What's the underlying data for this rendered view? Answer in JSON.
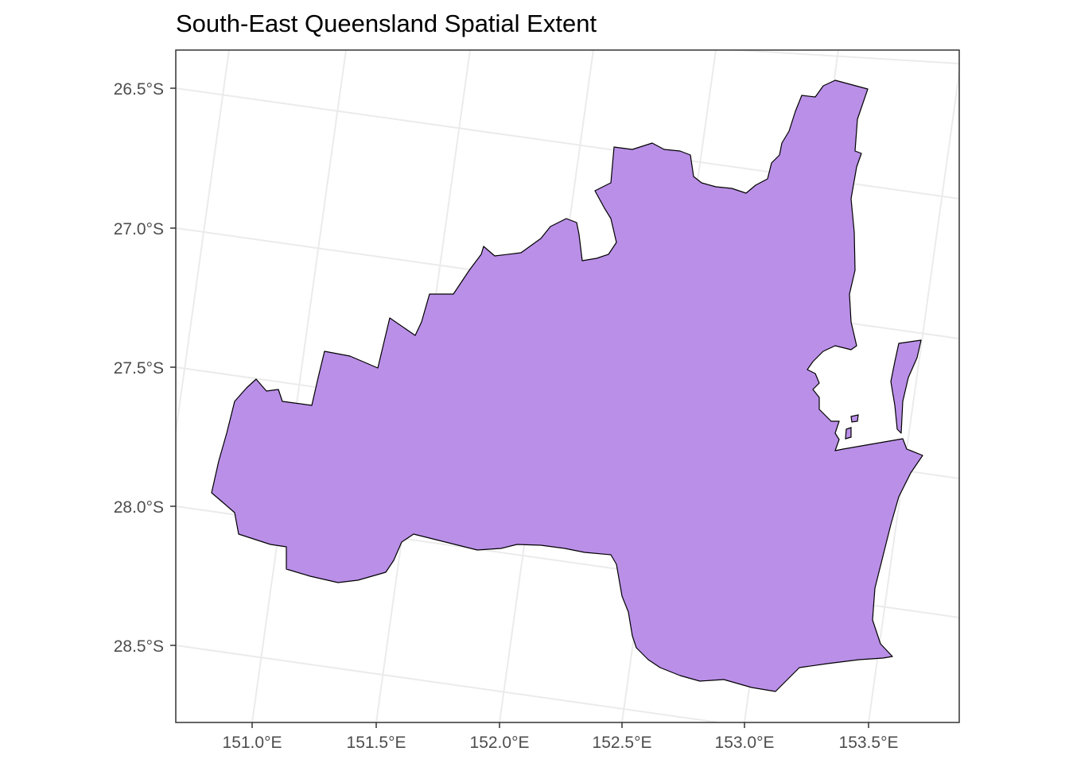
{
  "map": {
    "title": "South-East Queensland Spatial Extent",
    "region_fill": "#B98FE7",
    "region_outline": "#000000",
    "x_axis": {
      "ticks": [
        "151.0°E",
        "151.5°E",
        "152.0°E",
        "152.5°E",
        "153.0°E",
        "153.5°E"
      ]
    },
    "y_axis": {
      "ticks": [
        "26.5°S",
        "27.0°S",
        "27.5°S",
        "28.0°S",
        "28.5°S"
      ]
    },
    "grid": true
  }
}
